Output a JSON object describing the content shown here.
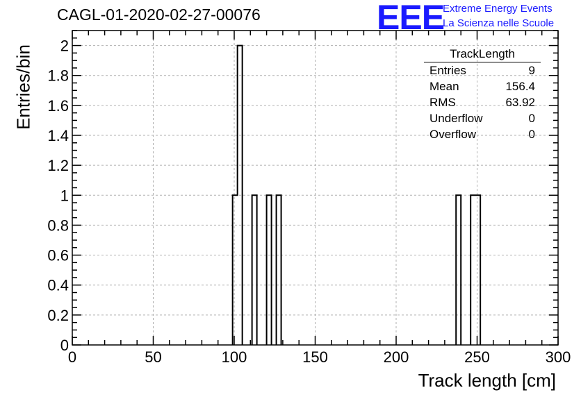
{
  "header": {
    "run_title": "CAGL-01-2020-02-27-00076",
    "logo_text": "EEE",
    "logo_line1": "Extreme Energy Events",
    "logo_line2": "La Scienza nelle Scuole",
    "logo_color": "#1a1aff"
  },
  "stats_box": {
    "title": "TrackLength",
    "rows": [
      {
        "label": "Entries",
        "value": "9"
      },
      {
        "label": "Mean",
        "value": "156.4"
      },
      {
        "label": "RMS",
        "value": "63.92"
      },
      {
        "label": "Underflow",
        "value": "0"
      },
      {
        "label": "Overflow",
        "value": "0"
      }
    ]
  },
  "chart_data": {
    "type": "bar",
    "xlabel": "Track length [cm]",
    "ylabel": "Entries/bin",
    "xlim": [
      0,
      300
    ],
    "ylim": [
      0,
      2.1
    ],
    "grid": true,
    "x_ticks": [
      0,
      50,
      100,
      150,
      200,
      250,
      300
    ],
    "y_ticks": [
      0,
      0.2,
      0.4,
      0.6,
      0.8,
      1,
      1.2,
      1.4,
      1.6,
      1.8,
      2
    ],
    "x_tick_labels": [
      "0",
      "50",
      "100",
      "150",
      "200",
      "250",
      "300"
    ],
    "y_tick_labels": [
      "0",
      "0.2",
      "0.4",
      "0.6",
      "0.8",
      "1",
      "1.2",
      "1.4",
      "1.6",
      "1.8",
      "2"
    ],
    "bin_width": 3,
    "bins": [
      {
        "x_low": 99,
        "x_high": 102,
        "value": 1
      },
      {
        "x_low": 102,
        "x_high": 105,
        "value": 2
      },
      {
        "x_low": 111,
        "x_high": 114,
        "value": 1
      },
      {
        "x_low": 120,
        "x_high": 123,
        "value": 1
      },
      {
        "x_low": 126,
        "x_high": 129,
        "value": 1
      },
      {
        "x_low": 237,
        "x_high": 240,
        "value": 1
      },
      {
        "x_low": 246,
        "x_high": 249,
        "value": 1
      },
      {
        "x_low": 249,
        "x_high": 252,
        "value": 1
      }
    ]
  }
}
